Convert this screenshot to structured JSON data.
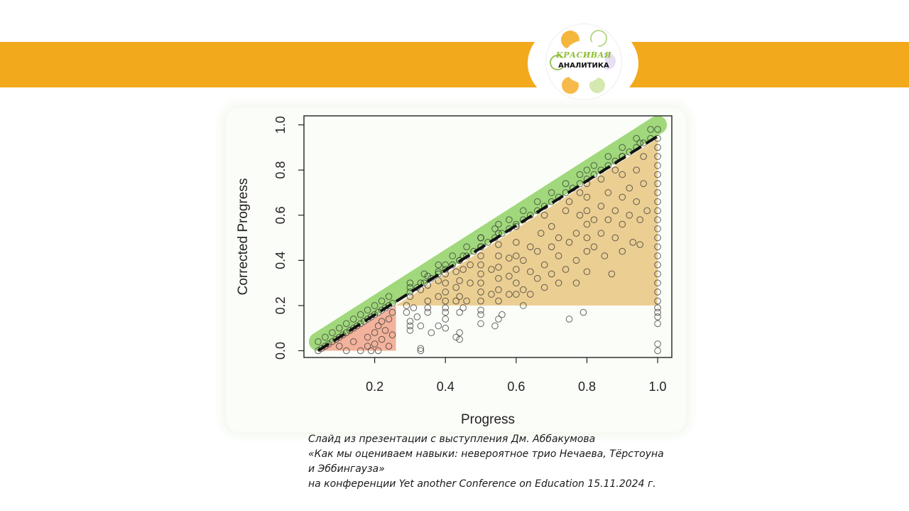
{
  "header": {
    "band_color": "#f3a91c"
  },
  "logo": {
    "line1": "КРАСИВАЯ",
    "line2": "АНАЛИТИКА"
  },
  "chart_data": {
    "type": "scatter",
    "title": "",
    "xlabel": "Progress",
    "ylabel": "Corrected Progress",
    "xlim": [
      0.0,
      1.04
    ],
    "ylim": [
      -0.03,
      1.04
    ],
    "xticks": [
      0.2,
      0.4,
      0.6,
      0.8,
      1.0
    ],
    "yticks": [
      0.0,
      0.2,
      0.4,
      0.6,
      0.8,
      1.0
    ],
    "x_tick_labels": [
      "0.2",
      "0.4",
      "0.6",
      "0.8",
      "1.0"
    ],
    "y_tick_labels": [
      "0.0",
      "0.2",
      "0.4",
      "0.6",
      "0.8",
      "1.0"
    ],
    "grid": false,
    "highlights": [
      {
        "shape": "diagonal band",
        "from": [
          0.04,
          0.04
        ],
        "to": [
          1.0,
          1.0
        ],
        "color": "#97d56e"
      },
      {
        "shape": "triangle",
        "points": [
          [
            0.04,
            0.0
          ],
          [
            0.26,
            0.2
          ],
          [
            0.26,
            0.0
          ]
        ],
        "color": "#f0a58c"
      },
      {
        "shape": "triangle",
        "points": [
          [
            0.26,
            0.2
          ],
          [
            1.0,
            0.94
          ],
          [
            1.0,
            0.2
          ]
        ],
        "color": "#e8c680"
      }
    ],
    "reference_line": {
      "style": "dashed",
      "from": [
        0.04,
        0.0
      ],
      "to": [
        1.0,
        0.95
      ],
      "color": "#111111"
    },
    "points": [
      [
        0.04,
        0.0
      ],
      [
        0.05,
        0.01
      ],
      [
        0.06,
        0.02
      ],
      [
        0.07,
        0.03
      ],
      [
        0.08,
        0.04
      ],
      [
        0.09,
        0.05
      ],
      [
        0.1,
        0.06
      ],
      [
        0.11,
        0.07
      ],
      [
        0.12,
        0.08
      ],
      [
        0.13,
        0.09
      ],
      [
        0.14,
        0.1
      ],
      [
        0.15,
        0.11
      ],
      [
        0.16,
        0.12
      ],
      [
        0.17,
        0.13
      ],
      [
        0.18,
        0.14
      ],
      [
        0.19,
        0.15
      ],
      [
        0.2,
        0.16
      ],
      [
        0.21,
        0.17
      ],
      [
        0.22,
        0.18
      ],
      [
        0.23,
        0.19
      ],
      [
        0.24,
        0.2
      ],
      [
        0.25,
        0.21
      ],
      [
        0.04,
        0.04
      ],
      [
        0.06,
        0.06
      ],
      [
        0.08,
        0.08
      ],
      [
        0.1,
        0.1
      ],
      [
        0.12,
        0.12
      ],
      [
        0.14,
        0.14
      ],
      [
        0.16,
        0.16
      ],
      [
        0.18,
        0.18
      ],
      [
        0.2,
        0.2
      ],
      [
        0.22,
        0.22
      ],
      [
        0.24,
        0.24
      ],
      [
        0.1,
        0.02
      ],
      [
        0.12,
        0.0
      ],
      [
        0.14,
        0.04
      ],
      [
        0.16,
        0.0
      ],
      [
        0.18,
        0.06
      ],
      [
        0.18,
        0.02
      ],
      [
        0.2,
        0.08
      ],
      [
        0.2,
        0.03
      ],
      [
        0.21,
        0.11
      ],
      [
        0.22,
        0.05
      ],
      [
        0.22,
        0.13
      ],
      [
        0.23,
        0.09
      ],
      [
        0.24,
        0.02
      ],
      [
        0.24,
        0.14
      ],
      [
        0.25,
        0.07
      ],
      [
        0.25,
        0.17
      ],
      [
        0.19,
        0.0
      ],
      [
        0.21,
        0.0
      ],
      [
        0.29,
        0.2
      ],
      [
        0.29,
        0.17
      ],
      [
        0.3,
        0.13
      ],
      [
        0.3,
        0.11
      ],
      [
        0.3,
        0.09
      ],
      [
        0.31,
        0.19
      ],
      [
        0.32,
        0.15
      ],
      [
        0.33,
        0.01
      ],
      [
        0.33,
        0.0
      ],
      [
        0.33,
        0.11
      ],
      [
        0.35,
        0.17
      ],
      [
        0.35,
        0.19
      ],
      [
        0.36,
        0.08
      ],
      [
        0.38,
        0.11
      ],
      [
        0.4,
        0.1
      ],
      [
        0.4,
        0.14
      ],
      [
        0.4,
        0.17
      ],
      [
        0.4,
        0.19
      ],
      [
        0.43,
        0.06
      ],
      [
        0.44,
        0.08
      ],
      [
        0.44,
        0.05
      ],
      [
        0.44,
        0.17
      ],
      [
        0.45,
        0.19
      ],
      [
        0.5,
        0.16
      ],
      [
        0.5,
        0.12
      ],
      [
        0.5,
        0.18
      ],
      [
        0.54,
        0.11
      ],
      [
        0.55,
        0.14
      ],
      [
        0.56,
        0.16
      ],
      [
        0.62,
        0.2
      ],
      [
        0.75,
        0.14
      ],
      [
        0.79,
        0.17
      ],
      [
        1.0,
        0.0
      ],
      [
        1.0,
        0.03
      ],
      [
        1.0,
        0.12
      ],
      [
        1.0,
        0.15
      ],
      [
        1.0,
        0.17
      ],
      [
        1.0,
        0.19
      ],
      [
        0.3,
        0.24
      ],
      [
        0.3,
        0.28
      ],
      [
        0.33,
        0.27
      ],
      [
        0.33,
        0.3
      ],
      [
        0.35,
        0.22
      ],
      [
        0.35,
        0.29
      ],
      [
        0.35,
        0.33
      ],
      [
        0.38,
        0.24
      ],
      [
        0.38,
        0.31
      ],
      [
        0.38,
        0.35
      ],
      [
        0.4,
        0.22
      ],
      [
        0.4,
        0.26
      ],
      [
        0.4,
        0.3
      ],
      [
        0.4,
        0.34
      ],
      [
        0.4,
        0.38
      ],
      [
        0.43,
        0.22
      ],
      [
        0.43,
        0.28
      ],
      [
        0.43,
        0.35
      ],
      [
        0.44,
        0.24
      ],
      [
        0.44,
        0.31
      ],
      [
        0.44,
        0.4
      ],
      [
        0.45,
        0.36
      ],
      [
        0.45,
        0.42
      ],
      [
        0.46,
        0.22
      ],
      [
        0.47,
        0.3
      ],
      [
        0.47,
        0.38
      ],
      [
        0.5,
        0.22
      ],
      [
        0.5,
        0.26
      ],
      [
        0.5,
        0.3
      ],
      [
        0.5,
        0.34
      ],
      [
        0.5,
        0.38
      ],
      [
        0.5,
        0.42
      ],
      [
        0.5,
        0.46
      ],
      [
        0.5,
        0.5
      ],
      [
        0.53,
        0.25
      ],
      [
        0.53,
        0.36
      ],
      [
        0.55,
        0.22
      ],
      [
        0.55,
        0.27
      ],
      [
        0.55,
        0.32
      ],
      [
        0.55,
        0.37
      ],
      [
        0.55,
        0.42
      ],
      [
        0.55,
        0.47
      ],
      [
        0.55,
        0.52
      ],
      [
        0.55,
        0.56
      ],
      [
        0.58,
        0.25
      ],
      [
        0.58,
        0.33
      ],
      [
        0.58,
        0.41
      ],
      [
        0.6,
        0.25
      ],
      [
        0.6,
        0.3
      ],
      [
        0.6,
        0.36
      ],
      [
        0.6,
        0.42
      ],
      [
        0.6,
        0.48
      ],
      [
        0.6,
        0.55
      ],
      [
        0.62,
        0.27
      ],
      [
        0.62,
        0.4
      ],
      [
        0.64,
        0.25
      ],
      [
        0.64,
        0.35
      ],
      [
        0.64,
        0.46
      ],
      [
        0.66,
        0.32
      ],
      [
        0.66,
        0.44
      ],
      [
        0.67,
        0.52
      ],
      [
        0.68,
        0.28
      ],
      [
        0.68,
        0.38
      ],
      [
        0.68,
        0.6
      ],
      [
        0.7,
        0.34
      ],
      [
        0.7,
        0.46
      ],
      [
        0.7,
        0.55
      ],
      [
        0.72,
        0.3
      ],
      [
        0.72,
        0.42
      ],
      [
        0.72,
        0.5
      ],
      [
        0.74,
        0.36
      ],
      [
        0.74,
        0.62
      ],
      [
        0.75,
        0.48
      ],
      [
        0.75,
        0.66
      ],
      [
        0.77,
        0.3
      ],
      [
        0.77,
        0.4
      ],
      [
        0.77,
        0.52
      ],
      [
        0.78,
        0.6
      ],
      [
        0.78,
        0.7
      ],
      [
        0.8,
        0.35
      ],
      [
        0.8,
        0.44
      ],
      [
        0.8,
        0.5
      ],
      [
        0.8,
        0.56
      ],
      [
        0.8,
        0.62
      ],
      [
        0.8,
        0.68
      ],
      [
        0.8,
        0.74
      ],
      [
        0.8,
        0.8
      ],
      [
        0.82,
        0.46
      ],
      [
        0.82,
        0.58
      ],
      [
        0.84,
        0.52
      ],
      [
        0.84,
        0.64
      ],
      [
        0.84,
        0.76
      ],
      [
        0.85,
        0.42
      ],
      [
        0.86,
        0.58
      ],
      [
        0.86,
        0.7
      ],
      [
        0.87,
        0.34
      ],
      [
        0.88,
        0.5
      ],
      [
        0.88,
        0.62
      ],
      [
        0.88,
        0.8
      ],
      [
        0.9,
        0.44
      ],
      [
        0.9,
        0.56
      ],
      [
        0.9,
        0.68
      ],
      [
        0.9,
        0.78
      ],
      [
        0.9,
        0.86
      ],
      [
        0.92,
        0.6
      ],
      [
        0.92,
        0.72
      ],
      [
        0.93,
        0.48
      ],
      [
        0.94,
        0.66
      ],
      [
        0.94,
        0.8
      ],
      [
        0.95,
        0.47
      ],
      [
        0.95,
        0.58
      ],
      [
        0.95,
        0.92
      ],
      [
        0.96,
        0.74
      ],
      [
        0.96,
        0.86
      ],
      [
        0.97,
        0.62
      ],
      [
        1.0,
        0.22
      ],
      [
        1.0,
        0.26
      ],
      [
        1.0,
        0.3
      ],
      [
        1.0,
        0.34
      ],
      [
        1.0,
        0.38
      ],
      [
        1.0,
        0.42
      ],
      [
        1.0,
        0.46
      ],
      [
        1.0,
        0.5
      ],
      [
        1.0,
        0.54
      ],
      [
        1.0,
        0.58
      ],
      [
        1.0,
        0.62
      ],
      [
        1.0,
        0.66
      ],
      [
        1.0,
        0.7
      ],
      [
        1.0,
        0.74
      ],
      [
        1.0,
        0.78
      ],
      [
        1.0,
        0.82
      ],
      [
        1.0,
        0.86
      ],
      [
        1.0,
        0.9
      ],
      [
        1.0,
        0.94
      ],
      [
        1.0,
        0.98
      ],
      [
        0.3,
        0.26
      ],
      [
        0.32,
        0.28
      ],
      [
        0.34,
        0.3
      ],
      [
        0.36,
        0.32
      ],
      [
        0.38,
        0.34
      ],
      [
        0.4,
        0.36
      ],
      [
        0.42,
        0.38
      ],
      [
        0.44,
        0.4
      ],
      [
        0.46,
        0.42
      ],
      [
        0.48,
        0.44
      ],
      [
        0.5,
        0.46
      ],
      [
        0.52,
        0.48
      ],
      [
        0.54,
        0.5
      ],
      [
        0.56,
        0.52
      ],
      [
        0.58,
        0.54
      ],
      [
        0.6,
        0.56
      ],
      [
        0.62,
        0.58
      ],
      [
        0.64,
        0.6
      ],
      [
        0.66,
        0.62
      ],
      [
        0.68,
        0.64
      ],
      [
        0.7,
        0.66
      ],
      [
        0.72,
        0.68
      ],
      [
        0.74,
        0.7
      ],
      [
        0.76,
        0.72
      ],
      [
        0.78,
        0.74
      ],
      [
        0.8,
        0.76
      ],
      [
        0.82,
        0.78
      ],
      [
        0.84,
        0.8
      ],
      [
        0.86,
        0.82
      ],
      [
        0.88,
        0.84
      ],
      [
        0.9,
        0.86
      ],
      [
        0.92,
        0.88
      ],
      [
        0.94,
        0.9
      ],
      [
        0.96,
        0.92
      ],
      [
        0.98,
        0.94
      ],
      [
        0.3,
        0.3
      ],
      [
        0.34,
        0.34
      ],
      [
        0.38,
        0.38
      ],
      [
        0.42,
        0.42
      ],
      [
        0.46,
        0.46
      ],
      [
        0.5,
        0.5
      ],
      [
        0.54,
        0.54
      ],
      [
        0.58,
        0.58
      ],
      [
        0.62,
        0.62
      ],
      [
        0.66,
        0.66
      ],
      [
        0.7,
        0.7
      ],
      [
        0.74,
        0.74
      ],
      [
        0.78,
        0.78
      ],
      [
        0.82,
        0.82
      ],
      [
        0.86,
        0.86
      ],
      [
        0.9,
        0.9
      ],
      [
        0.94,
        0.94
      ],
      [
        0.98,
        0.98
      ]
    ]
  },
  "caption": {
    "line1": "Слайд  из презентации с выступления Дм. Аббакумова",
    "line2": "«Как мы оцениваем навыки: невероятное трио Нечаева, Тёрстоуна",
    "line3": "и Эббингауза»",
    "line4": "на конференции Yet another Conference on Education 15.11.2024 г."
  }
}
